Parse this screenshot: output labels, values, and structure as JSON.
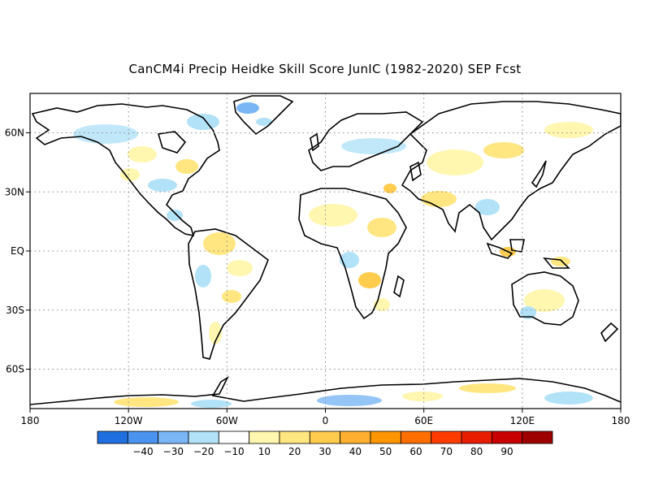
{
  "title": "CanCM4i Precip Heidke Skill Score JunIC (1982-2020) SEP Fcst",
  "map": {
    "projection": "equirectangular",
    "lon_range": [
      -180,
      180
    ],
    "lat_range": [
      -80,
      80
    ],
    "gridlines": "dotted",
    "lon_ticks": [
      {
        "value": -180,
        "label": "180"
      },
      {
        "value": -120,
        "label": "120W"
      },
      {
        "value": -60,
        "label": "60W"
      },
      {
        "value": 0,
        "label": "0"
      },
      {
        "value": 60,
        "label": "60E"
      },
      {
        "value": 120,
        "label": "120E"
      },
      {
        "value": 180,
        "label": "180"
      }
    ],
    "lat_ticks": [
      {
        "value": 60,
        "label": "60N"
      },
      {
        "value": 30,
        "label": "30N"
      },
      {
        "value": 0,
        "label": "EQ"
      },
      {
        "value": -30,
        "label": "30S"
      },
      {
        "value": -60,
        "label": "60S"
      }
    ]
  },
  "colorbar": {
    "colors": [
      "#1f6fe0",
      "#4a93ef",
      "#7ab6f5",
      "#b2e2f8",
      "#ffffff",
      "#fff6b0",
      "#ffe680",
      "#ffcc4d",
      "#ffb030",
      "#ff9600",
      "#ff6f00",
      "#ff3c00",
      "#e81c00",
      "#c80000",
      "#9e0000"
    ],
    "labels": [
      "-40",
      "-30",
      "-20",
      "-10",
      "10",
      "20",
      "30",
      "40",
      "50",
      "60",
      "70",
      "80",
      "90"
    ]
  }
}
